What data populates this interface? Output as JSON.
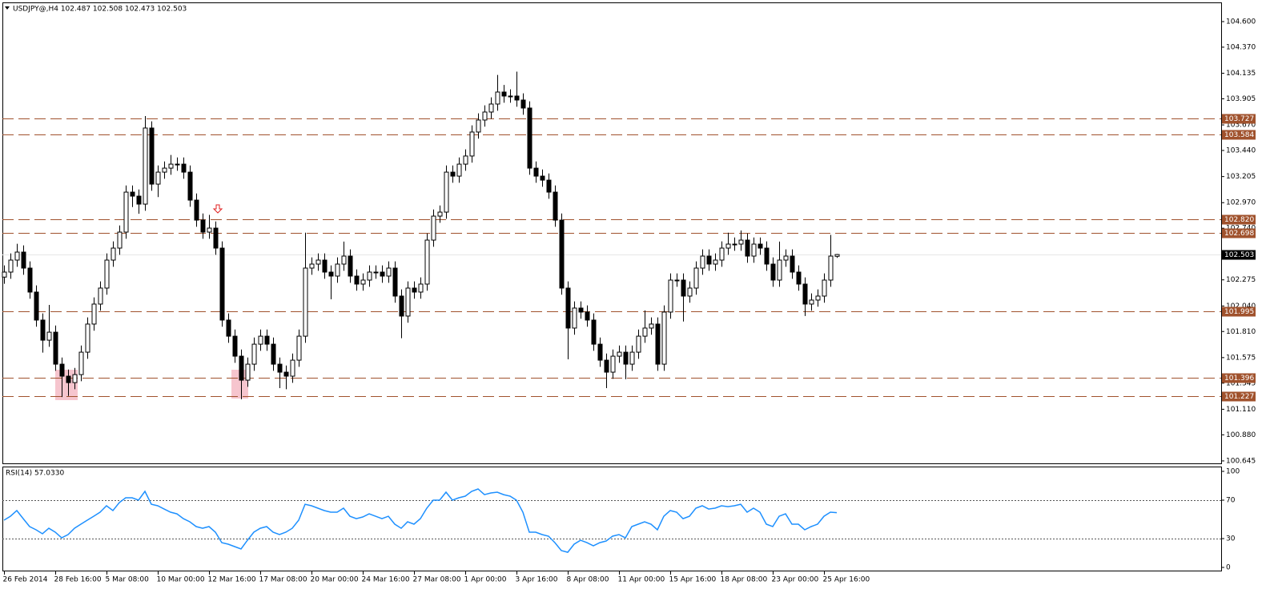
{
  "chart_data": [
    {
      "type": "candlestick",
      "title": "USDJPY@,H4  102.487 102.508 102.473 102.503",
      "open": [
        102.3,
        102.345,
        102.453,
        102.525,
        102.381,
        102.165,
        101.913,
        101.732,
        101.804,
        101.516,
        101.408,
        101.35,
        101.422,
        101.624,
        101.877,
        102.057,
        102.201,
        102.453,
        102.561,
        102.705,
        103.065,
        103.029,
        102.957,
        103.642,
        103.137,
        103.245,
        103.281,
        103.317,
        103.317,
        103.245,
        102.993,
        102.813,
        102.705,
        102.741,
        102.561,
        101.913,
        101.768,
        101.588,
        101.372,
        101.516,
        101.696,
        101.768,
        101.696,
        101.516,
        101.444,
        101.408,
        101.552,
        101.768,
        102.381,
        102.417,
        102.453,
        102.345,
        102.309,
        102.417,
        102.489,
        102.309,
        102.237,
        102.273,
        102.345,
        102.345,
        102.309,
        102.381,
        102.129,
        101.949,
        102.201,
        102.165,
        102.237,
        102.633,
        102.849,
        102.885,
        103.245,
        103.209,
        103.317,
        103.39,
        103.606,
        103.714,
        103.786,
        103.858,
        103.966,
        103.93,
        103.93,
        103.894,
        103.822,
        103.281,
        103.209,
        103.173,
        103.065,
        102.813,
        102.201,
        101.841,
        102.021,
        101.985,
        101.913,
        101.696,
        101.552,
        101.444,
        101.588,
        101.624,
        101.516,
        101.624,
        101.768,
        101.841,
        101.877,
        101.516,
        101.985,
        102.273,
        102.273,
        102.129,
        102.201,
        102.381,
        102.489,
        102.417,
        102.453,
        102.561,
        102.597,
        102.597,
        102.633,
        102.489,
        102.597,
        102.561,
        102.417,
        102.273,
        102.453,
        102.489,
        102.345,
        102.237,
        102.057,
        102.093,
        102.129,
        102.273,
        102.487
      ],
      "high": [
        102.405,
        102.513,
        102.6,
        102.585,
        102.441,
        102.225,
        101.973,
        102.05,
        101.864,
        101.576,
        101.468,
        101.482,
        101.684,
        101.937,
        102.117,
        102.261,
        102.513,
        102.621,
        102.765,
        103.125,
        103.125,
        103.089,
        103.75,
        103.702,
        103.305,
        103.341,
        103.4,
        103.377,
        103.377,
        103.305,
        103.053,
        102.873,
        102.86,
        102.801,
        102.621,
        101.973,
        101.828,
        101.648,
        101.576,
        101.756,
        101.828,
        101.828,
        101.756,
        101.576,
        101.504,
        101.612,
        101.828,
        102.7,
        102.477,
        102.513,
        102.513,
        102.405,
        102.477,
        102.62,
        102.549,
        102.369,
        102.333,
        102.405,
        102.405,
        102.405,
        102.441,
        102.441,
        102.189,
        102.261,
        102.261,
        102.297,
        102.693,
        102.909,
        102.945,
        103.305,
        103.305,
        103.377,
        103.45,
        103.666,
        103.774,
        103.846,
        103.918,
        104.12,
        104.03,
        103.99,
        104.15,
        103.954,
        103.882,
        103.341,
        103.269,
        103.233,
        103.125,
        102.873,
        102.261,
        102.081,
        102.081,
        102.045,
        101.973,
        101.756,
        101.612,
        101.648,
        101.684,
        101.684,
        101.684,
        101.828,
        102.0,
        101.937,
        101.937,
        102.045,
        102.333,
        102.333,
        102.333,
        102.261,
        102.441,
        102.549,
        102.549,
        102.513,
        102.621,
        102.7,
        102.657,
        102.72,
        102.693,
        102.657,
        102.657,
        102.621,
        102.477,
        102.62,
        102.549,
        102.549,
        102.405,
        102.297,
        102.153,
        102.189,
        102.333,
        102.68,
        102.508
      ],
      "low": [
        102.24,
        102.285,
        102.393,
        102.321,
        102.105,
        101.853,
        101.62,
        101.672,
        101.456,
        101.22,
        101.23,
        101.29,
        101.362,
        101.564,
        101.817,
        101.997,
        102.141,
        102.393,
        102.501,
        102.645,
        102.93,
        102.87,
        102.897,
        103.077,
        103.02,
        103.185,
        103.221,
        103.257,
        103.185,
        102.933,
        102.753,
        102.645,
        102.645,
        102.501,
        101.853,
        101.708,
        101.528,
        101.2,
        101.312,
        101.456,
        101.636,
        101.636,
        101.456,
        101.3,
        101.29,
        101.348,
        101.492,
        101.708,
        102.321,
        102.357,
        102.285,
        102.1,
        102.249,
        102.357,
        102.249,
        102.177,
        102.177,
        102.213,
        102.285,
        102.249,
        102.249,
        102.069,
        101.75,
        101.889,
        102.105,
        102.105,
        102.177,
        102.573,
        102.789,
        102.825,
        103.149,
        103.149,
        103.257,
        103.33,
        103.546,
        103.654,
        103.726,
        103.798,
        103.87,
        103.87,
        103.834,
        103.762,
        103.221,
        103.149,
        103.113,
        103.005,
        102.753,
        102.141,
        101.56,
        101.781,
        101.925,
        101.853,
        101.636,
        101.492,
        101.3,
        101.384,
        101.528,
        101.38,
        101.456,
        101.564,
        101.708,
        101.781,
        101.456,
        101.456,
        101.925,
        102.213,
        101.9,
        102.069,
        102.141,
        102.321,
        102.357,
        102.357,
        102.393,
        102.501,
        102.537,
        102.537,
        102.429,
        102.429,
        102.501,
        102.357,
        102.213,
        102.213,
        102.393,
        102.285,
        102.177,
        101.95,
        101.997,
        102.033,
        102.069,
        102.213,
        102.473
      ],
      "close": [
        102.345,
        102.453,
        102.525,
        102.381,
        102.165,
        101.913,
        101.732,
        101.804,
        101.516,
        101.408,
        101.35,
        101.422,
        101.624,
        101.877,
        102.057,
        102.201,
        102.453,
        102.561,
        102.705,
        103.065,
        103.029,
        102.957,
        103.642,
        103.137,
        103.245,
        103.281,
        103.317,
        103.317,
        103.245,
        102.993,
        102.813,
        102.705,
        102.741,
        102.561,
        101.913,
        101.768,
        101.588,
        101.372,
        101.516,
        101.696,
        101.768,
        101.696,
        101.516,
        101.444,
        101.408,
        101.552,
        101.768,
        102.381,
        102.417,
        102.453,
        102.345,
        102.309,
        102.417,
        102.489,
        102.309,
        102.237,
        102.273,
        102.345,
        102.345,
        102.309,
        102.381,
        102.129,
        101.949,
        102.201,
        102.165,
        102.237,
        102.633,
        102.849,
        102.885,
        103.245,
        103.209,
        103.317,
        103.39,
        103.606,
        103.714,
        103.786,
        103.858,
        103.966,
        103.93,
        103.93,
        103.894,
        103.822,
        103.281,
        103.209,
        103.173,
        103.065,
        102.813,
        102.201,
        101.841,
        102.021,
        101.985,
        101.913,
        101.696,
        101.552,
        101.444,
        101.588,
        101.624,
        101.516,
        101.624,
        101.768,
        101.841,
        101.877,
        101.516,
        101.985,
        102.273,
        102.273,
        102.129,
        102.201,
        102.381,
        102.489,
        102.417,
        102.453,
        102.561,
        102.597,
        102.597,
        102.633,
        102.489,
        102.597,
        102.561,
        102.417,
        102.273,
        102.453,
        102.489,
        102.345,
        102.237,
        102.057,
        102.093,
        102.129,
        102.273,
        102.489,
        102.503
      ],
      "up_color": "#ffffff",
      "down_color": "#000000",
      "ylim": [
        100.623,
        104.773
      ],
      "yticks": [
        {
          "value": 104.6,
          "label": "104.600"
        },
        {
          "value": 104.37,
          "label": "104.370"
        },
        104.135,
        103.905,
        {
          "value": 103.67,
          "label": "103.670"
        },
        {
          "value": 103.44,
          "label": "103.440"
        },
        103.205,
        {
          "value": 102.97,
          "label": "102.970"
        },
        {
          "value": 102.74,
          "label": "102.740"
        },
        102.275,
        {
          "value": 102.04,
          "label": "102.040"
        },
        {
          "value": 101.81,
          "label": "101.810"
        },
        101.575,
        101.345,
        {
          "value": 101.11,
          "label": "101.110"
        },
        {
          "value": 100.88,
          "label": "100.880"
        },
        100.645
      ],
      "levels": [
        103.727,
        103.584,
        {
          "value": 102.82,
          "label": "102.820"
        },
        102.698,
        101.995,
        101.396,
        101.227
      ],
      "level_color": "#a0522d",
      "last_price": 102.503,
      "xlim": [
        -0.25,
        190
      ],
      "xticks": [
        {
          "value": 0,
          "label": "26 Feb 2014"
        },
        {
          "value": 8,
          "label": "28 Feb 16:00"
        },
        {
          "value": 16,
          "label": "5 Mar 08:00"
        },
        {
          "value": 24,
          "label": "10 Mar 00:00"
        },
        {
          "value": 32,
          "label": "12 Mar 16:00"
        },
        {
          "value": 40,
          "label": "17 Mar 08:00"
        },
        {
          "value": 48,
          "label": "20 Mar 00:00"
        },
        {
          "value": 56,
          "label": "24 Mar 16:00"
        },
        {
          "value": 64,
          "label": "27 Mar 08:00"
        },
        {
          "value": 72,
          "label": "1 Apr 00:00"
        },
        {
          "value": 80,
          "label": "3 Apr 16:00"
        },
        {
          "value": 88,
          "label": "8 Apr 08:00"
        },
        {
          "value": 96,
          "label": "11 Apr 00:00"
        },
        {
          "value": 104,
          "label": "15 Apr 16:00"
        },
        {
          "value": 112,
          "label": "18 Apr 08:00"
        },
        {
          "value": 120,
          "label": "23 Apr 00:00"
        },
        {
          "value": 128,
          "label": "25 Apr 16:00"
        }
      ]
    },
    {
      "type": "line",
      "title": "RSI(14) 57.0330",
      "color": "#1e90ff",
      "values": [
        49.2,
        53.3,
        59.2,
        50.8,
        42.5,
        39.2,
        35.0,
        40.8,
        36.7,
        30.8,
        34.2,
        40.8,
        45.0,
        49.2,
        53.3,
        57.5,
        64.2,
        59.2,
        67.5,
        72.5,
        72.5,
        70.0,
        79.2,
        65.8,
        64.2,
        60.8,
        57.5,
        55.8,
        50.8,
        47.5,
        42.5,
        40.8,
        42.5,
        36.7,
        25.8,
        24.2,
        21.7,
        19.2,
        28.3,
        36.7,
        40.8,
        42.5,
        36.7,
        34.2,
        36.7,
        40.8,
        49.2,
        65.8,
        64.2,
        61.7,
        59.2,
        57.5,
        57.5,
        61.7,
        53.3,
        50.8,
        52.5,
        55.8,
        53.3,
        50.8,
        53.3,
        45.0,
        40.8,
        47.5,
        45.0,
        50.8,
        61.7,
        70.0,
        70.0,
        78.3,
        70.0,
        72.5,
        74.2,
        79.2,
        81.7,
        75.8,
        77.5,
        78.3,
        75.8,
        74.2,
        70.0,
        57.5,
        36.7,
        36.7,
        34.2,
        32.5,
        25.8,
        17.5,
        15.8,
        24.2,
        28.3,
        25.8,
        22.5,
        25.8,
        27.5,
        32.5,
        34.2,
        30.8,
        42.5,
        45.0,
        47.5,
        45.0,
        39.2,
        53.3,
        59.2,
        57.5,
        50.8,
        53.3,
        61.7,
        64.2,
        60.8,
        61.7,
        64.2,
        63.3,
        64.2,
        65.8,
        57.5,
        61.7,
        57.5,
        45.0,
        42.5,
        53.3,
        55.8,
        45.0,
        45.0,
        39.2,
        42.5,
        45.0,
        53.3,
        57.5,
        57.033
      ],
      "ylim": [
        -3.3,
        105
      ],
      "yticks": [
        100,
        70,
        30,
        0
      ],
      "levels": [
        70,
        30
      ],
      "xlim": [
        -0.25,
        190
      ]
    }
  ]
}
